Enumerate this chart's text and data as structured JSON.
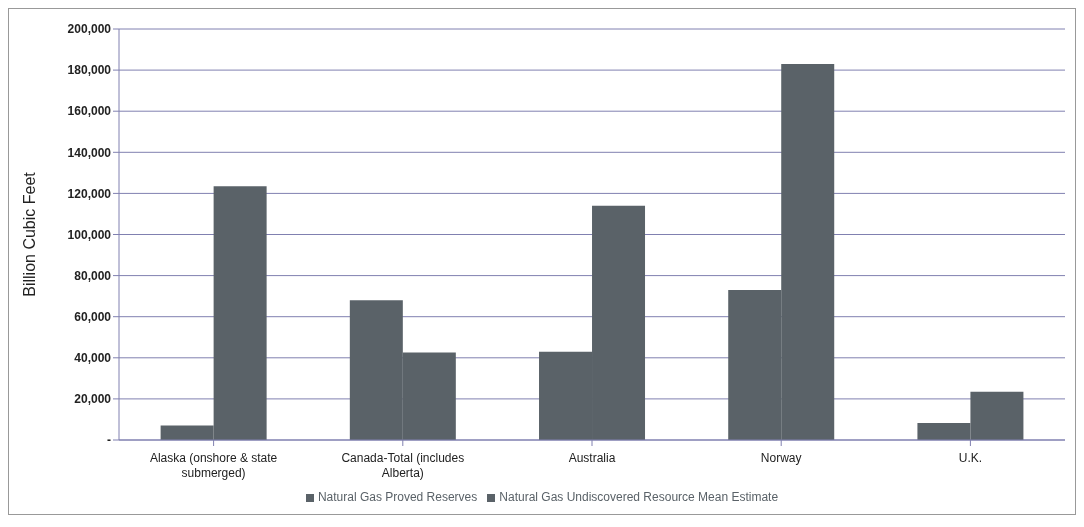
{
  "chart_data": {
    "type": "bar",
    "ylabel": "Billion Cubic Feet",
    "categories": [
      "Alaska (onshore & state submerged)",
      "Canada-Total (includes Alberta)",
      "Australia",
      "Norway",
      "U.K."
    ],
    "series": [
      {
        "name": "Natural Gas Proved Reserves",
        "color": "#5a6268",
        "values": [
          7000,
          68000,
          43000,
          73000,
          8300
        ]
      },
      {
        "name": "Natural Gas Undiscovered Resource Mean Estimate",
        "color": "#5a6268",
        "values": [
          123500,
          42600,
          114000,
          183000,
          23500
        ]
      }
    ],
    "ylim": [
      0,
      200000
    ],
    "yticks": [
      {
        "value": 0,
        "label": "-"
      },
      {
        "value": 20000,
        "label": "20,000"
      },
      {
        "value": 40000,
        "label": "40,000"
      },
      {
        "value": 60000,
        "label": "60,000"
      },
      {
        "value": 80000,
        "label": "80,000"
      },
      {
        "value": 100000,
        "label": "100,000"
      },
      {
        "value": 120000,
        "label": "120,000"
      },
      {
        "value": 140000,
        "label": "140,000"
      },
      {
        "value": 160000,
        "label": "160,000"
      },
      {
        "value": 180000,
        "label": "180,000"
      },
      {
        "value": 200000,
        "label": "200,000"
      }
    ],
    "grid": "y",
    "legend": "bottom"
  }
}
